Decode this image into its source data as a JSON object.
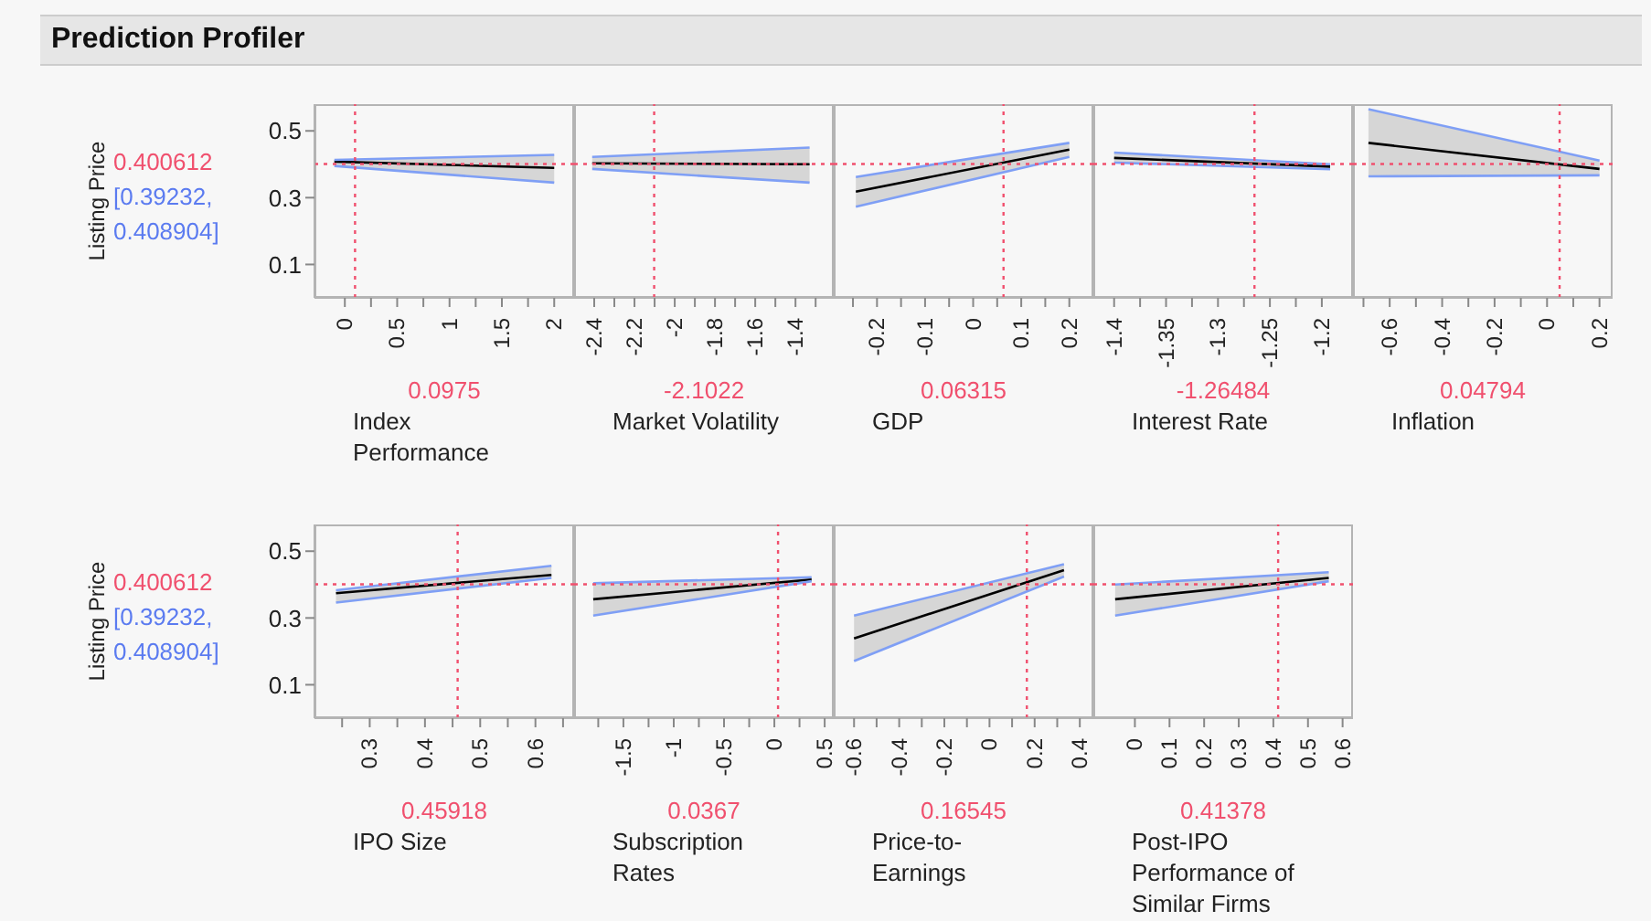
{
  "chart_data": [
    {
      "type": "line",
      "title": "Prediction Profiler",
      "ylabel": "Listing Price",
      "xlabel": "Index Performance",
      "x": [
        -0.1,
        2.0
      ],
      "series": [
        {
          "color": "#000000",
          "values": [
            0.408,
            0.389
          ],
          "lower": [
            0.395,
            0.345
          ],
          "upper": [
            0.413,
            0.428
          ]
        },
        {
          "type": "line",
          "color": "#7f9ff5",
          "values": [
            0.395,
            0.345
          ]
        },
        {
          "type": "line",
          "color": "#7f9ff5",
          "values": [
            0.413,
            0.428
          ]
        }
      ],
      "xlim": [
        -0.29,
        2.19
      ],
      "xticks": [
        0,
        {
          "value": 0.25,
          "label": null
        },
        0.5,
        {
          "value": 0.75,
          "label": null
        },
        1,
        {
          "value": 1.25,
          "label": null
        },
        1.5,
        {
          "value": 1.75,
          "label": null
        },
        2
      ],
      "ylim": [
        0,
        0.58
      ],
      "yticks": [
        0.1,
        0.3,
        0.5
      ],
      "ref_lines": [
        {
          "axis": "x",
          "value": 0.0975,
          "label": "0.0975",
          "color": "#f0506e",
          "line_style": "dotted"
        },
        {
          "axis": "y",
          "value": 0.400612,
          "label": "0.400612",
          "color": "#f0506e",
          "line_style": "dotted"
        }
      ],
      "annotations": [
        "[0.39232, 0.408904]"
      ],
      "grid": false,
      "legend": false
    },
    {
      "type": "line",
      "xlabel": "Market Volatility",
      "x": [
        -2.41,
        -1.33
      ],
      "series": [
        {
          "color": "#000000",
          "values": [
            0.403,
            0.4
          ],
          "lower": [
            0.386,
            0.345
          ],
          "upper": [
            0.422,
            0.45
          ]
        },
        {
          "type": "line",
          "color": "#7f9ff5",
          "values": [
            0.386,
            0.345
          ]
        },
        {
          "type": "line",
          "color": "#7f9ff5",
          "values": [
            0.422,
            0.45
          ]
        }
      ],
      "xlim": [
        -2.5,
        -1.21
      ],
      "xticks": [
        -2.4,
        {
          "value": -2.3,
          "label": null
        },
        -2.2,
        {
          "value": -2.1,
          "label": null
        },
        -2,
        {
          "value": -1.9,
          "label": null
        },
        -1.8,
        {
          "value": -1.7,
          "label": null
        },
        -1.6,
        {
          "value": -1.5,
          "label": null
        },
        -1.4,
        {
          "value": -1.3,
          "label": null
        }
      ],
      "ylim": [
        0,
        0.58
      ],
      "tick_labels": "x",
      "ref_lines": [
        {
          "axis": "x",
          "value": -2.1022,
          "label": "-2.1022",
          "color": "#f0506e",
          "line_style": "dotted"
        },
        {
          "axis": "y",
          "value": 0.400612,
          "color": "#f0506e",
          "line_style": "dotted"
        }
      ],
      "grid": false,
      "legend": false
    },
    {
      "type": "line",
      "xlabel": "GDP",
      "x": [
        -0.244,
        0.2
      ],
      "series": [
        {
          "color": "#000000",
          "values": [
            0.318,
            0.444
          ],
          "lower": [
            0.273,
            0.422
          ],
          "upper": [
            0.362,
            0.464
          ]
        },
        {
          "type": "line",
          "color": "#7f9ff5",
          "values": [
            0.273,
            0.422
          ]
        },
        {
          "type": "line",
          "color": "#7f9ff5",
          "values": [
            0.362,
            0.464
          ]
        }
      ],
      "xlim": [
        -0.29,
        0.25
      ],
      "xticks": [
        {
          "value": -0.25,
          "label": null
        },
        -0.2,
        {
          "value": -0.15,
          "label": null
        },
        -0.1,
        {
          "value": -0.05,
          "label": null
        },
        0,
        {
          "value": 0.05,
          "label": null
        },
        0.1,
        {
          "value": 0.15,
          "label": null
        },
        0.2
      ],
      "ylim": [
        0,
        0.58
      ],
      "tick_labels": "x",
      "ref_lines": [
        {
          "axis": "x",
          "value": 0.06315,
          "label": "0.06315",
          "color": "#f0506e",
          "line_style": "dotted"
        },
        {
          "axis": "y",
          "value": 0.400612,
          "color": "#f0506e",
          "line_style": "dotted"
        }
      ],
      "grid": false,
      "legend": false
    },
    {
      "type": "line",
      "xlabel": "Interest Rate",
      "x": [
        -1.4,
        -1.192
      ],
      "series": [
        {
          "color": "#000000",
          "values": [
            0.419,
            0.393
          ],
          "lower": [
            0.405,
            0.385
          ],
          "upper": [
            0.435,
            0.4
          ]
        },
        {
          "type": "line",
          "color": "#7f9ff5",
          "values": [
            0.405,
            0.385
          ]
        },
        {
          "type": "line",
          "color": "#7f9ff5",
          "values": [
            0.435,
            0.4
          ]
        }
      ],
      "xlim": [
        -1.42,
        -1.17
      ],
      "xticks": [
        -1.4,
        {
          "value": -1.375,
          "label": null
        },
        -1.35,
        {
          "value": -1.325,
          "label": null
        },
        -1.3,
        {
          "value": -1.275,
          "label": null
        },
        -1.25,
        {
          "value": -1.225,
          "label": null
        },
        -1.2
      ],
      "ylim": [
        0,
        0.58
      ],
      "tick_labels": "x",
      "ref_lines": [
        {
          "axis": "x",
          "value": -1.26484,
          "label": "-1.26484",
          "color": "#f0506e",
          "line_style": "dotted"
        },
        {
          "axis": "y",
          "value": 0.400612,
          "color": "#f0506e",
          "line_style": "dotted"
        }
      ],
      "grid": false,
      "legend": false
    },
    {
      "type": "line",
      "xlabel": "Inflation",
      "x": [
        -0.681,
        0.2
      ],
      "series": [
        {
          "color": "#000000",
          "values": [
            0.464,
            0.386
          ],
          "lower": [
            0.364,
            0.367
          ],
          "upper": [
            0.565,
            0.411
          ]
        },
        {
          "type": "line",
          "color": "#7f9ff5",
          "values": [
            0.364,
            0.367
          ]
        },
        {
          "type": "line",
          "color": "#7f9ff5",
          "values": [
            0.565,
            0.411
          ]
        }
      ],
      "xlim": [
        -0.74,
        0.25
      ],
      "xticks": [
        {
          "value": -0.7,
          "label": null
        },
        -0.6,
        {
          "value": -0.5,
          "label": null
        },
        -0.4,
        {
          "value": -0.3,
          "label": null
        },
        -0.2,
        {
          "value": -0.1,
          "label": null
        },
        0,
        {
          "value": 0.1,
          "label": null
        },
        0.2
      ],
      "ylim": [
        0,
        0.58
      ],
      "tick_labels": "x",
      "ref_lines": [
        {
          "axis": "x",
          "value": 0.04794,
          "label": "0.04794",
          "color": "#f0506e",
          "line_style": "dotted"
        },
        {
          "axis": "y",
          "value": 0.400612,
          "color": "#f0506e",
          "line_style": "dotted"
        }
      ],
      "grid": false,
      "legend": false
    },
    {
      "type": "line",
      "ylabel": "Listing Price",
      "xlabel": "IPO Size",
      "x": [
        0.239,
        0.629
      ],
      "series": [
        {
          "color": "#000000",
          "values": [
            0.374,
            0.429
          ],
          "lower": [
            0.346,
            0.42
          ],
          "upper": [
            0.383,
            0.456
          ]
        },
        {
          "type": "line",
          "color": "#7f9ff5",
          "values": [
            0.346,
            0.42
          ]
        },
        {
          "type": "line",
          "color": "#7f9ff5",
          "values": [
            0.383,
            0.456
          ]
        }
      ],
      "xlim": [
        0.2,
        0.67
      ],
      "xticks": [
        {
          "value": 0.25,
          "label": null
        },
        0.3,
        {
          "value": 0.35,
          "label": null
        },
        0.4,
        {
          "value": 0.45,
          "label": null
        },
        0.5,
        {
          "value": 0.55,
          "label": null
        },
        0.6,
        {
          "value": 0.65,
          "label": null
        }
      ],
      "ylim": [
        0,
        0.58
      ],
      "yticks": [
        0.1,
        0.3,
        0.5
      ],
      "ref_lines": [
        {
          "axis": "x",
          "value": 0.45918,
          "label": "0.45918",
          "color": "#f0506e",
          "line_style": "dotted"
        },
        {
          "axis": "y",
          "value": 0.400612,
          "label": "0.400612",
          "color": "#f0506e",
          "line_style": "dotted"
        }
      ],
      "annotations": [
        "[0.39232, 0.408904]"
      ],
      "grid": false,
      "legend": false
    },
    {
      "type": "line",
      "xlabel": "Subscription Rates",
      "x": [
        -1.8,
        0.37
      ],
      "series": [
        {
          "color": "#000000",
          "values": [
            0.356,
            0.415
          ],
          "lower": [
            0.307,
            0.41
          ],
          "upper": [
            0.404,
            0.422
          ]
        },
        {
          "type": "line",
          "color": "#7f9ff5",
          "values": [
            0.307,
            0.41
          ]
        },
        {
          "type": "line",
          "color": "#7f9ff5",
          "values": [
            0.404,
            0.422
          ]
        }
      ],
      "xlim": [
        -1.99,
        0.59
      ],
      "xticks": [
        {
          "value": -1.75,
          "label": null
        },
        -1.5,
        {
          "value": -1.25,
          "label": null
        },
        -1,
        {
          "value": -0.75,
          "label": null
        },
        -0.5,
        {
          "value": -0.25,
          "label": null
        },
        0,
        {
          "value": 0.25,
          "label": null
        },
        0.5
      ],
      "ylim": [
        0,
        0.58
      ],
      "tick_labels": "x",
      "ref_lines": [
        {
          "axis": "x",
          "value": 0.0367,
          "label": "0.0367",
          "color": "#f0506e",
          "line_style": "dotted"
        },
        {
          "axis": "y",
          "value": 0.400612,
          "color": "#f0506e",
          "line_style": "dotted"
        }
      ],
      "grid": false,
      "legend": false
    },
    {
      "type": "line",
      "xlabel": "Price-to-Earnings",
      "x": [
        -0.6,
        0.33
      ],
      "series": [
        {
          "color": "#000000",
          "values": [
            0.239,
            0.443
          ],
          "lower": [
            0.171,
            0.424
          ],
          "upper": [
            0.307,
            0.461
          ]
        },
        {
          "type": "line",
          "color": "#7f9ff5",
          "values": [
            0.171,
            0.424
          ]
        },
        {
          "type": "line",
          "color": "#7f9ff5",
          "values": [
            0.307,
            0.461
          ]
        }
      ],
      "xlim": [
        -0.69,
        0.46
      ],
      "xticks": [
        -0.6,
        {
          "value": -0.5,
          "label": null
        },
        -0.4,
        {
          "value": -0.3,
          "label": null
        },
        -0.2,
        {
          "value": -0.1,
          "label": null
        },
        0,
        {
          "value": 0.1,
          "label": null
        },
        0.2,
        {
          "value": 0.3,
          "label": null
        },
        0.4
      ],
      "ylim": [
        0,
        0.58
      ],
      "tick_labels": "x",
      "ref_lines": [
        {
          "axis": "x",
          "value": 0.16545,
          "label": "0.16545",
          "color": "#f0506e",
          "line_style": "dotted"
        },
        {
          "axis": "y",
          "value": 0.400612,
          "color": "#f0506e",
          "line_style": "dotted"
        }
      ],
      "grid": false,
      "legend": false
    },
    {
      "type": "line",
      "xlabel": "Post-IPO Performance of Similar Firms",
      "x": [
        -0.057,
        0.56
      ],
      "series": [
        {
          "color": "#000000",
          "values": [
            0.356,
            0.42
          ],
          "lower": [
            0.307,
            0.41
          ],
          "upper": [
            0.4,
            0.437
          ]
        },
        {
          "type": "line",
          "color": "#7f9ff5",
          "values": [
            0.307,
            0.41
          ]
        },
        {
          "type": "line",
          "color": "#7f9ff5",
          "values": [
            0.4,
            0.437
          ]
        }
      ],
      "xlim": [
        -0.12,
        0.63
      ],
      "xticks": [
        0,
        0.1,
        0.2,
        0.3,
        0.4,
        0.5,
        0.6
      ],
      "ylim": [
        0,
        0.58
      ],
      "tick_labels": "x",
      "ref_lines": [
        {
          "axis": "x",
          "value": 0.41378,
          "label": "0.41378",
          "color": "#f0506e",
          "line_style": "dotted"
        },
        {
          "axis": "y",
          "value": 0.400612,
          "color": "#f0506e",
          "line_style": "dotted"
        }
      ],
      "grid": false,
      "legend": false
    }
  ]
}
